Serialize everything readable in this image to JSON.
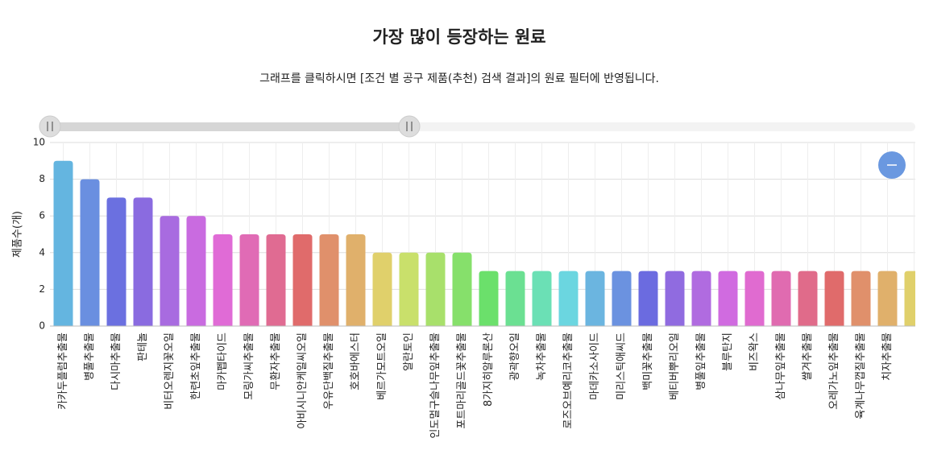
{
  "chart_data": {
    "type": "bar",
    "title": "가장 많이 등장하는 원료",
    "subtitle": "그래프를 클릭하시면 [조건 별 공구 제품(추천) 검색 결과]의 원료 필터에 반영됩니다.",
    "y_label": "제품수(개)",
    "categories": [
      "카카두플럼추출물",
      "병풀추출물",
      "다시마추출물",
      "판테놀",
      "비터오렌지꽃오일",
      "한련초잎추출물",
      "마카펩타이드",
      "모링가씨추출물",
      "무환자추출물",
      "아비시니안케일씨오일",
      "우유단백질추출물",
      "호호바에스터",
      "베르가모트오일",
      "알란토인",
      "인도멀구슬나무잎추출물",
      "포트마리골드꽃추출물",
      "8가지히알루론산",
      "광곽향오일",
      "녹차추출물",
      "로즈오브예리코추출물",
      "마데카소사이드",
      "미리스틱애씨드",
      "백미꽃추출물",
      "베티버뿌리오일",
      "병풀잎추출물",
      "블루탄지",
      "비즈왁스",
      "삼나무잎추출물",
      "쌀겨추출물",
      "오레가노잎추출물",
      "육계나무껍질추출물",
      "치자추출물",
      null
    ],
    "values": [
      9,
      8,
      7,
      7,
      6,
      6,
      5,
      5,
      5,
      5,
      5,
      5,
      4,
      4,
      4,
      4,
      3,
      3,
      3,
      3,
      3,
      3,
      3,
      3,
      3,
      3,
      3,
      3,
      3,
      3,
      3,
      3,
      3
    ],
    "colors": [
      "#64b5e0",
      "#6a8fe0",
      "#6b70e0",
      "#8a6be0",
      "#a86be0",
      "#c96be0",
      "#e06bd6",
      "#e06bb5",
      "#e06b92",
      "#e06b6b",
      "#e0906b",
      "#e0b06b",
      "#e0d06b",
      "#c9e06b",
      "#a8e06b",
      "#86e06b",
      "#6be06b",
      "#6be092",
      "#6be0b5",
      "#6bd6e0",
      "#6bb5e0",
      "#6b92e0",
      "#6b6be0",
      "#906be0",
      "#b06be0",
      "#d06be0",
      "#e06bd0",
      "#e06bb0",
      "#e06b8a",
      "#e06b6b",
      "#e0906b",
      "#e0b06b",
      "#e0d06b"
    ],
    "ylim": [
      0,
      10
    ],
    "yticks": [
      0,
      2,
      4,
      6,
      8,
      10
    ],
    "grid": true
  }
}
